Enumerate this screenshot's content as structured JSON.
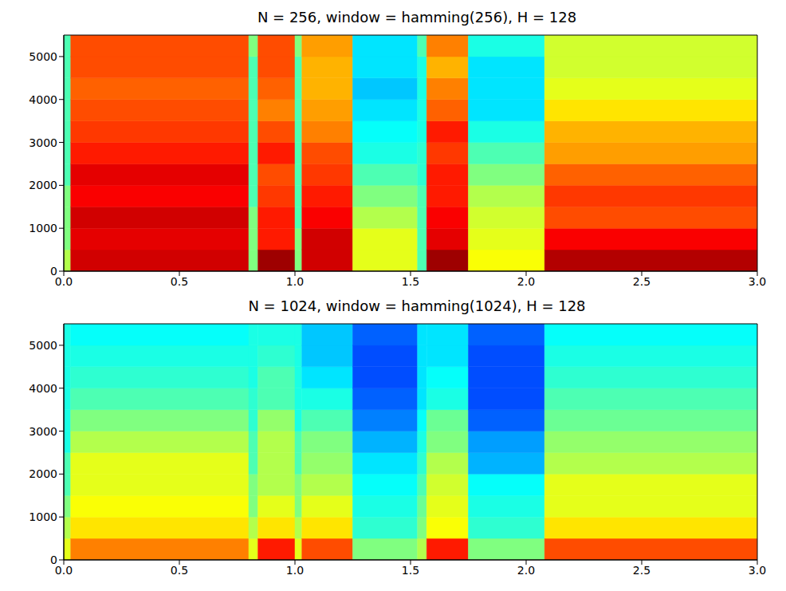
{
  "chart_data": [
    {
      "type": "heatmap",
      "title": "N = 256, window = hamming(256), H = 128",
      "xlim": [
        0,
        3.0
      ],
      "ylim": [
        0,
        5500
      ],
      "xticks": [
        {
          "value": 0,
          "label": "0.0"
        },
        {
          "value": 0.5,
          "label": "0.5"
        },
        {
          "value": 1,
          "label": "1.0"
        },
        {
          "value": 1.5,
          "label": "1.5"
        },
        {
          "value": 2,
          "label": "2.0"
        },
        {
          "value": 2.5,
          "label": "2.5"
        },
        {
          "value": 3,
          "label": "3.0"
        }
      ],
      "yticks": [
        0,
        1000,
        2000,
        3000,
        4000,
        5000
      ],
      "x_edges": [
        0,
        0.03,
        0.8,
        0.84,
        1.0,
        1.03,
        1.25,
        1.53,
        1.57,
        1.75,
        2.08,
        3.0
      ],
      "y_edges": [
        0,
        500,
        1000,
        1500,
        2000,
        2500,
        3000,
        3500,
        4000,
        4500,
        5000,
        5500
      ],
      "clim": [
        0,
        1
      ],
      "cells": [
        [
          0.55,
          0.5,
          0.5,
          0.5,
          0.45,
          0.45,
          0.45,
          0.45,
          0.45,
          0.45,
          0.45
        ],
        [
          0.92,
          0.9,
          0.92,
          0.88,
          0.9,
          0.85,
          0.82,
          0.8,
          0.78,
          0.8,
          0.8
        ],
        [
          0.5,
          0.5,
          0.5,
          0.45,
          0.45,
          0.45,
          0.45,
          0.45,
          0.45,
          0.45,
          0.5
        ],
        [
          0.97,
          0.85,
          0.85,
          0.82,
          0.8,
          0.85,
          0.8,
          0.75,
          0.78,
          0.8,
          0.8
        ],
        [
          0.5,
          0.5,
          0.45,
          0.45,
          0.45,
          0.45,
          0.45,
          0.45,
          0.45,
          0.45,
          0.5
        ],
        [
          0.92,
          0.92,
          0.88,
          0.85,
          0.82,
          0.8,
          0.75,
          0.72,
          0.7,
          0.7,
          0.72
        ],
        [
          0.6,
          0.6,
          0.55,
          0.5,
          0.45,
          0.4,
          0.38,
          0.35,
          0.32,
          0.35,
          0.35
        ],
        [
          0.45,
          0.45,
          0.45,
          0.45,
          0.42,
          0.42,
          0.4,
          0.4,
          0.4,
          0.4,
          0.45
        ],
        [
          0.97,
          0.9,
          0.88,
          0.85,
          0.85,
          0.82,
          0.85,
          0.78,
          0.75,
          0.7,
          0.75
        ],
        [
          0.62,
          0.6,
          0.58,
          0.55,
          0.5,
          0.45,
          0.4,
          0.35,
          0.35,
          0.35,
          0.4
        ],
        [
          0.95,
          0.88,
          0.8,
          0.82,
          0.78,
          0.72,
          0.7,
          0.65,
          0.6,
          0.58,
          0.58
        ]
      ]
    },
    {
      "type": "heatmap",
      "title": "N = 1024, window = hamming(1024), H = 128",
      "xlim": [
        0,
        3.0
      ],
      "ylim": [
        0,
        5500
      ],
      "xticks": [
        {
          "value": 0,
          "label": "0.0"
        },
        {
          "value": 0.5,
          "label": "0.5"
        },
        {
          "value": 1,
          "label": "1.0"
        },
        {
          "value": 1.5,
          "label": "1.5"
        },
        {
          "value": 2,
          "label": "2.0"
        },
        {
          "value": 2.5,
          "label": "2.5"
        },
        {
          "value": 3,
          "label": "3.0"
        }
      ],
      "yticks": [
        0,
        1000,
        2000,
        3000,
        4000,
        5000
      ],
      "x_edges": [
        0,
        0.03,
        0.8,
        0.84,
        1.0,
        1.03,
        1.25,
        1.53,
        1.57,
        1.75,
        2.08,
        3.0
      ],
      "y_edges": [
        0,
        500,
        1000,
        1500,
        2000,
        2500,
        3000,
        3500,
        4000,
        4500,
        5000,
        5500
      ],
      "clim": [
        0,
        1
      ],
      "cells": [
        [
          0.6,
          0.55,
          0.5,
          0.45,
          0.45,
          0.4,
          0.4,
          0.4,
          0.4,
          0.4,
          0.4
        ],
        [
          0.75,
          0.65,
          0.62,
          0.6,
          0.6,
          0.55,
          0.5,
          0.45,
          0.42,
          0.4,
          0.38
        ],
        [
          0.6,
          0.55,
          0.5,
          0.5,
          0.45,
          0.45,
          0.42,
          0.42,
          0.4,
          0.4,
          0.4
        ],
        [
          0.85,
          0.65,
          0.6,
          0.55,
          0.55,
          0.55,
          0.52,
          0.45,
          0.45,
          0.42,
          0.4
        ],
        [
          0.6,
          0.55,
          0.5,
          0.5,
          0.45,
          0.45,
          0.4,
          0.4,
          0.4,
          0.4,
          0.4
        ],
        [
          0.8,
          0.65,
          0.6,
          0.55,
          0.52,
          0.5,
          0.45,
          0.4,
          0.35,
          0.32,
          0.32
        ],
        [
          0.5,
          0.42,
          0.4,
          0.38,
          0.35,
          0.3,
          0.25,
          0.22,
          0.2,
          0.2,
          0.22
        ],
        [
          0.55,
          0.5,
          0.48,
          0.45,
          0.42,
          0.4,
          0.38,
          0.35,
          0.35,
          0.35,
          0.35
        ],
        [
          0.85,
          0.62,
          0.6,
          0.58,
          0.55,
          0.5,
          0.48,
          0.4,
          0.38,
          0.35,
          0.35
        ],
        [
          0.5,
          0.42,
          0.4,
          0.38,
          0.3,
          0.28,
          0.22,
          0.2,
          0.2,
          0.2,
          0.22
        ],
        [
          0.8,
          0.65,
          0.6,
          0.6,
          0.55,
          0.52,
          0.48,
          0.45,
          0.42,
          0.4,
          0.38
        ]
      ]
    }
  ]
}
